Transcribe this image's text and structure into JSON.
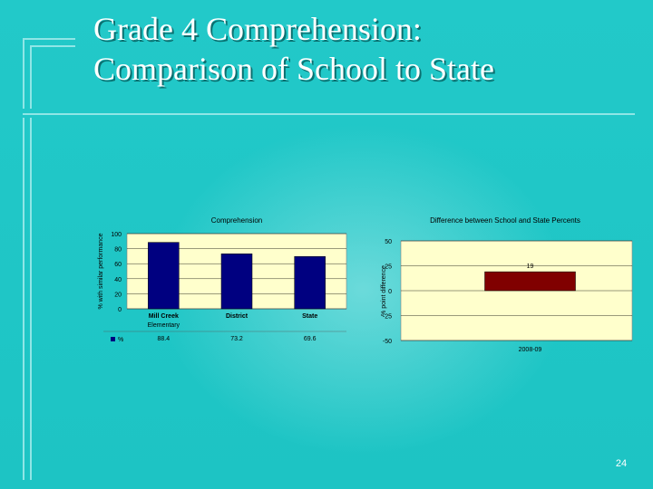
{
  "slide": {
    "title_line1": "Grade 4 Comprehension:",
    "title_line2": "Comparison of School to State",
    "page_number": "24"
  },
  "colors": {
    "background": "#1fc7c7",
    "plot_area": "#ffffcc",
    "bar_school_compare": "#000080",
    "bar_difference": "#800000"
  },
  "chart_data": [
    {
      "type": "bar",
      "title": "Comprehension",
      "ylabel": "% with similar performance",
      "categories": [
        "Mill Creek Elementary",
        "District",
        "State"
      ],
      "category_label_lines": [
        [
          "Mill Creek",
          "Elementary"
        ],
        [
          "District"
        ],
        [
          "State"
        ]
      ],
      "series": [
        {
          "name": "%",
          "values": [
            88.4,
            73.2,
            69.6
          ],
          "value_labels": [
            "88.4",
            "73.2",
            "69.6"
          ]
        }
      ],
      "ylim": [
        0,
        100
      ],
      "yticks": [
        0,
        20,
        40,
        60,
        80,
        100
      ],
      "legend": "data-table-below",
      "grid": true
    },
    {
      "type": "bar",
      "title": "Difference between School and State Percents",
      "ylabel": "% point difference",
      "xlabel": "2008-09",
      "categories": [
        "2008-09"
      ],
      "values": [
        19
      ],
      "value_labels": [
        "19"
      ],
      "ylim": [
        -50,
        50
      ],
      "yticks": [
        -50,
        -25,
        0,
        25,
        50
      ],
      "ytick_labels": [
        "-50",
        "-25",
        "0",
        "25",
        "50"
      ],
      "grid": true
    }
  ]
}
